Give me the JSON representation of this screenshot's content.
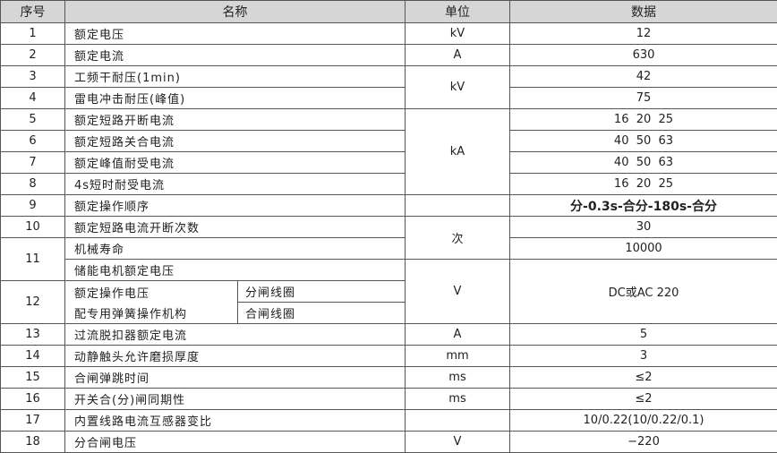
{
  "headers": {
    "seq": "序号",
    "name": "名称",
    "unit": "单位",
    "data": "数据"
  },
  "rows": [
    {
      "seq": "1",
      "name": "额定电压",
      "unit": "kV",
      "data": "12"
    },
    {
      "seq": "2",
      "name": "额定电流",
      "unit": "A",
      "data": "630"
    },
    {
      "seq": "3",
      "name": "工频干耐压(1min)",
      "unit": "kV",
      "data": "42"
    },
    {
      "seq": "4",
      "name": "雷电冲击耐压(峰值)",
      "data": "75"
    },
    {
      "seq": "5",
      "name": "额定短路开断电流",
      "unit": "kA",
      "data": "16  20  25"
    },
    {
      "seq": "6",
      "name": "额定短路关合电流",
      "data": "40  50  63"
    },
    {
      "seq": "7",
      "name": "额定峰值耐受电流",
      "data": "40  50  63"
    },
    {
      "seq": "8",
      "name": "4s短时耐受电流",
      "data": "16  20  25"
    },
    {
      "seq": "9",
      "name": "额定操作顺序",
      "unit": "",
      "data": "分-0.3s-合分-180s-合分"
    },
    {
      "seq": "10",
      "name": "额定短路电流开断次数",
      "unit": "次",
      "data": "30"
    },
    {
      "seq": "11",
      "name": "机械寿命",
      "name2": "储能电机额定电压",
      "data": "10000"
    },
    {
      "seq": "12",
      "name": "额定操作电压",
      "name2": "配专用弹簧操作机构",
      "sub": "分闸线圈",
      "sub2": "合闸线圈",
      "unit": "V",
      "data": "DC或AC 220"
    },
    {
      "seq": "13",
      "name": "过流脱扣器额定电流",
      "unit": "A",
      "data": "5"
    },
    {
      "seq": "14",
      "name": "动静触头允许磨损厚度",
      "unit": "mm",
      "data": "3"
    },
    {
      "seq": "15",
      "name": "合闸弹跳时间",
      "unit": "ms",
      "data": "≤2"
    },
    {
      "seq": "16",
      "name": "开关合(分)闸同期性",
      "unit": "ms",
      "data": "≤2"
    },
    {
      "seq": "17",
      "name": "内置线路电流互感器变比",
      "unit": "",
      "data": "10/0.22(10/0.22/0.1)"
    },
    {
      "seq": "18",
      "name": "分合闸电压",
      "unit": "V",
      "data": "−220"
    }
  ]
}
